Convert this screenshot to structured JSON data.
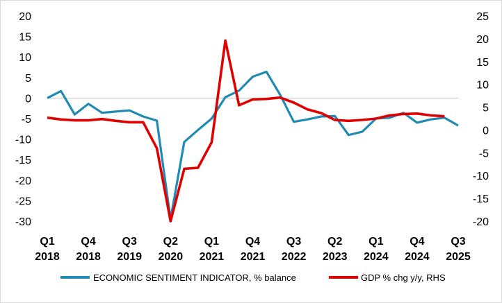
{
  "chart_data": {
    "type": "line",
    "title": "",
    "left_axis": {
      "min": -30,
      "max": 20,
      "step": 5
    },
    "right_axis": {
      "min": -20,
      "max": 25,
      "step": 5
    },
    "x_tick_labels": [
      [
        "Q1",
        "2018"
      ],
      [
        "Q4",
        "2018"
      ],
      [
        "Q3",
        "2019"
      ],
      [
        "Q2",
        "2020"
      ],
      [
        "Q1",
        "2021"
      ],
      [
        "Q4",
        "2021"
      ],
      [
        "Q3",
        "2022"
      ],
      [
        "Q2",
        "2023"
      ],
      [
        "Q1",
        "2024"
      ],
      [
        "Q4",
        "2024"
      ],
      [
        "Q3",
        "2025"
      ]
    ],
    "legend_position": "bottom",
    "series": [
      {
        "name": "ECONOMIC SENTIMENT INDICATOR, % balance",
        "axis": "left",
        "color": "#1f8bb5",
        "values": [
          0,
          1.7,
          -4.0,
          -1.4,
          -3.6,
          -3.3,
          -3.0,
          -4.5,
          -5.5,
          -29.5,
          -10.7,
          -7.8,
          -5.0,
          0.2,
          1.8,
          5.2,
          6.4,
          0.8,
          -5.8,
          -5.2,
          -4.5,
          -4.4,
          -9.0,
          -8.2,
          -5.0,
          -4.8,
          -3.6,
          -6.0,
          -5.2,
          -4.8,
          -6.7
        ]
      },
      {
        "name": "GDP % chg y/y, RHS",
        "axis": "right",
        "color": "#e00000",
        "values": [
          2.7,
          2.3,
          2.1,
          2.1,
          2.4,
          2.0,
          1.7,
          1.7,
          -4.0,
          -20.0,
          -8.5,
          -8.3,
          -2.7,
          19.6,
          5.4,
          6.7,
          6.8,
          7.1,
          6.0,
          4.5,
          3.7,
          2.2,
          2.0,
          2.2,
          2.5,
          3.2,
          3.5,
          3.6,
          3.2,
          3.0
        ]
      }
    ]
  }
}
